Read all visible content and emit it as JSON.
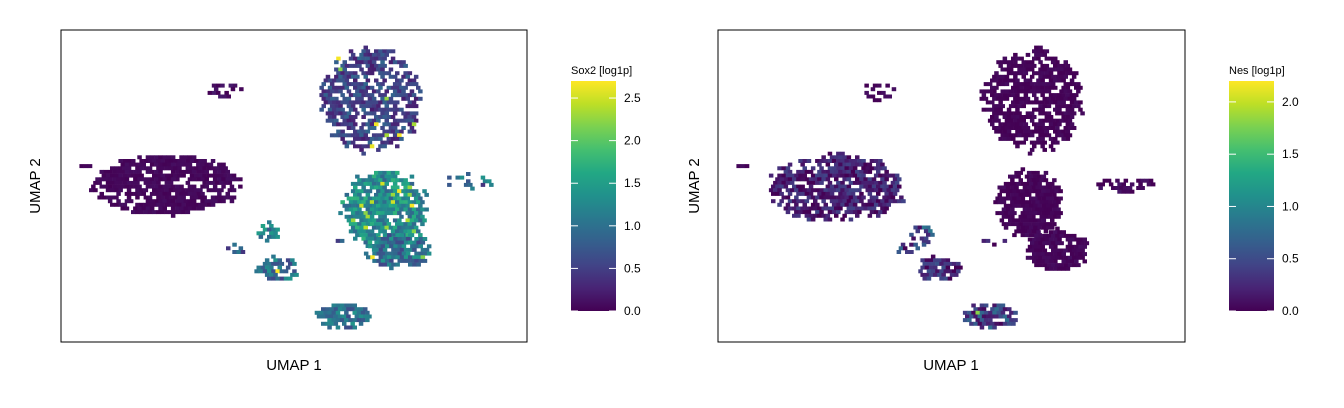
{
  "chart_data": [
    {
      "type": "heatmap",
      "subtype": "hexbin-umap",
      "xlabel": "UMAP 1",
      "ylabel": "UMAP 2",
      "colorbar": {
        "title": "Sox2 [log1p]",
        "range": [
          0,
          2.7
        ],
        "ticks": [
          0.0,
          0.5,
          1.0,
          1.5,
          2.0,
          2.5
        ],
        "tick_labels": [
          "0.0",
          "0.5",
          "1.0",
          "1.5",
          "2.0",
          "2.5"
        ],
        "colormap": "viridis"
      },
      "xlim": [
        0,
        100
      ],
      "ylim": [
        0,
        100
      ],
      "grid": false,
      "clusters": [
        {
          "cx": 66,
          "cy": 78,
          "rx": 11,
          "ry": 17,
          "level": 0.55,
          "spread": 0.35,
          "gaps": 0.28,
          "hot": 0.02
        },
        {
          "cx": 22,
          "cy": 51,
          "rx": 16,
          "ry": 10,
          "level": 0.05,
          "spread": 0.05,
          "gaps": 0.15,
          "hot": 0
        },
        {
          "cx": 69,
          "cy": 43,
          "rx": 9.5,
          "ry": 13,
          "level": 1.3,
          "spread": 0.45,
          "gaps": 0.12,
          "hot": 0.05
        },
        {
          "cx": 72,
          "cy": 30,
          "rx": 7,
          "ry": 6,
          "level": 1.0,
          "spread": 0.45,
          "gaps": 0.2,
          "hot": 0.06
        },
        {
          "cx": 44,
          "cy": 36,
          "rx": 2.5,
          "ry": 3,
          "level": 1.15,
          "spread": 0.4,
          "gaps": 0.25,
          "hot": 0
        },
        {
          "cx": 46,
          "cy": 24,
          "rx": 4.5,
          "ry": 4,
          "level": 0.95,
          "spread": 0.45,
          "gaps": 0.22,
          "hot": 0.04
        },
        {
          "cx": 60,
          "cy": 9,
          "rx": 6,
          "ry": 4.5,
          "level": 1.0,
          "spread": 0.4,
          "gaps": 0.18,
          "hot": 0.03
        },
        {
          "cx": 35,
          "cy": 81,
          "rx": 4,
          "ry": 3,
          "level": 0.1,
          "spread": 0.1,
          "gaps": 0.55,
          "hot": 0
        },
        {
          "cx": 5,
          "cy": 57,
          "rx": 1.5,
          "ry": 1.2,
          "level": 0.05,
          "spread": 0.05,
          "gaps": 0.25,
          "hot": 0
        },
        {
          "cx": 87,
          "cy": 52,
          "rx": 5.5,
          "ry": 2.5,
          "level": 0.9,
          "spread": 0.5,
          "gaps": 0.45,
          "hot": 0
        },
        {
          "cx": 38,
          "cy": 31,
          "rx": 3.5,
          "ry": 2,
          "level": 0.9,
          "spread": 0.5,
          "gaps": 0.55,
          "hot": 0
        },
        {
          "cx": 57,
          "cy": 33,
          "rx": 3,
          "ry": 1.2,
          "level": 0.5,
          "spread": 0.5,
          "gaps": 0.6,
          "hot": 0
        }
      ]
    },
    {
      "type": "heatmap",
      "subtype": "hexbin-umap",
      "xlabel": "UMAP 1",
      "ylabel": "UMAP 2",
      "colorbar": {
        "title": "Nes [log1p]",
        "range": [
          0,
          2.2
        ],
        "ticks": [
          0.0,
          0.5,
          1.0,
          1.5,
          2.0
        ],
        "tick_labels": [
          "0.0",
          "0.5",
          "1.0",
          "1.5",
          "2.0"
        ],
        "colormap": "viridis"
      },
      "xlim": [
        0,
        100
      ],
      "ylim": [
        0,
        100
      ],
      "grid": false,
      "clusters": [
        {
          "cx": 67,
          "cy": 78,
          "rx": 11,
          "ry": 17,
          "level": 0.02,
          "spread": 0.05,
          "gaps": 0.2,
          "hot": 0
        },
        {
          "cx": 25,
          "cy": 50,
          "rx": 15,
          "ry": 11,
          "level": 0.2,
          "spread": 0.25,
          "gaps": 0.18,
          "hot": 0
        },
        {
          "cx": 66,
          "cy": 45,
          "rx": 7.5,
          "ry": 11,
          "level": 0.02,
          "spread": 0.05,
          "gaps": 0.1,
          "hot": 0
        },
        {
          "cx": 72,
          "cy": 30,
          "rx": 7,
          "ry": 7,
          "level": 0.03,
          "spread": 0.06,
          "gaps": 0.1,
          "hot": 0
        },
        {
          "cx": 47,
          "cy": 24,
          "rx": 5,
          "ry": 4,
          "level": 0.25,
          "spread": 0.3,
          "gaps": 0.2,
          "hot": 0
        },
        {
          "cx": 43,
          "cy": 35,
          "rx": 2.5,
          "ry": 3.5,
          "level": 0.5,
          "spread": 0.45,
          "gaps": 0.3,
          "hot": 0.04
        },
        {
          "cx": 58,
          "cy": 9,
          "rx": 6,
          "ry": 4.5,
          "level": 0.4,
          "spread": 0.4,
          "gaps": 0.2,
          "hot": 0.02
        },
        {
          "cx": 34,
          "cy": 81,
          "rx": 4,
          "ry": 3,
          "level": 0.05,
          "spread": 0.05,
          "gaps": 0.55,
          "hot": 0
        },
        {
          "cx": 5,
          "cy": 57,
          "rx": 1.5,
          "ry": 1.2,
          "level": 0.05,
          "spread": 0.05,
          "gaps": 0.25,
          "hot": 0
        },
        {
          "cx": 87,
          "cy": 51,
          "rx": 6,
          "ry": 2.5,
          "level": 0.05,
          "spread": 0.08,
          "gaps": 0.45,
          "hot": 0
        },
        {
          "cx": 40,
          "cy": 31,
          "rx": 4,
          "ry": 2,
          "level": 0.4,
          "spread": 0.45,
          "gaps": 0.5,
          "hot": 0
        },
        {
          "cx": 59,
          "cy": 33,
          "rx": 3,
          "ry": 1.2,
          "level": 0.2,
          "spread": 0.3,
          "gaps": 0.6,
          "hot": 0
        }
      ]
    }
  ]
}
